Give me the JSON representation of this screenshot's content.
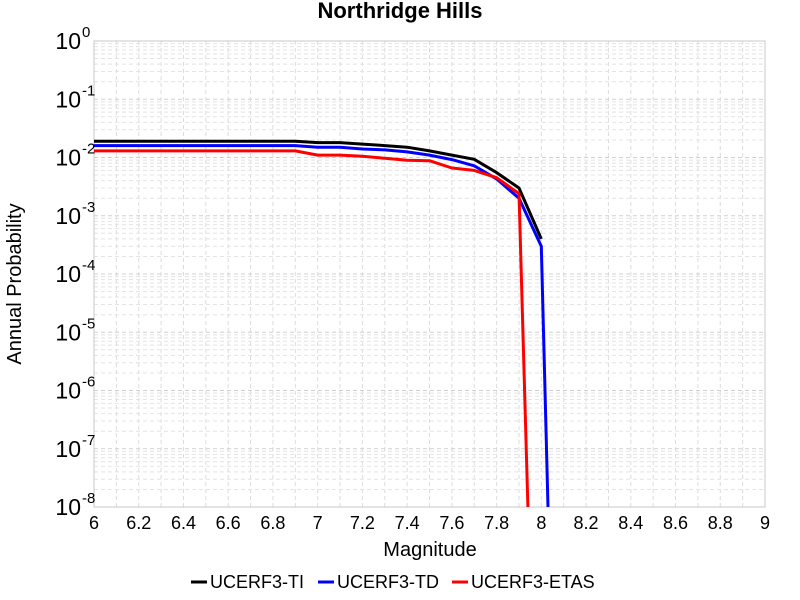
{
  "chart_data": {
    "type": "line",
    "title": "Northridge Hills",
    "xlabel": "Magnitude",
    "ylabel": "Annual Probability",
    "xlim": [
      6,
      9
    ],
    "ylim": [
      1e-08,
      1
    ],
    "yscale": "log",
    "grid": true,
    "legend_position": "bottom",
    "x_ticks": [
      "6",
      "6.2",
      "6.4",
      "6.6",
      "6.8",
      "7",
      "7.2",
      "7.4",
      "7.6",
      "7.8",
      "8",
      "8.2",
      "8.4",
      "8.6",
      "8.8",
      "9"
    ],
    "y_ticks": [
      {
        "base": "10",
        "exp": "-8"
      },
      {
        "base": "10",
        "exp": "-7"
      },
      {
        "base": "10",
        "exp": "-6"
      },
      {
        "base": "10",
        "exp": "-5"
      },
      {
        "base": "10",
        "exp": "-4"
      },
      {
        "base": "10",
        "exp": "-3"
      },
      {
        "base": "10",
        "exp": "-2"
      },
      {
        "base": "10",
        "exp": "-1"
      },
      {
        "base": "10",
        "exp": "0"
      }
    ],
    "series": [
      {
        "name": "UCERF3-TI",
        "color": "#000000",
        "x": [
          6.0,
          6.1,
          6.2,
          6.3,
          6.4,
          6.5,
          6.6,
          6.7,
          6.8,
          6.9,
          7.0,
          7.1,
          7.2,
          7.3,
          7.4,
          7.5,
          7.6,
          7.7,
          7.8,
          7.9,
          8.0
        ],
        "y": [
          0.019,
          0.019,
          0.019,
          0.019,
          0.019,
          0.019,
          0.019,
          0.019,
          0.019,
          0.019,
          0.018,
          0.018,
          0.017,
          0.016,
          0.015,
          0.013,
          0.011,
          0.0093,
          0.0055,
          0.003,
          0.0004
        ]
      },
      {
        "name": "UCERF3-TD",
        "color": "#0000ff",
        "x": [
          6.0,
          6.1,
          6.2,
          6.3,
          6.4,
          6.5,
          6.6,
          6.7,
          6.8,
          6.9,
          7.0,
          7.1,
          7.2,
          7.3,
          7.4,
          7.5,
          7.6,
          7.7,
          7.8,
          7.9,
          8.0,
          8.03
        ],
        "y": [
          0.016,
          0.016,
          0.016,
          0.016,
          0.016,
          0.016,
          0.016,
          0.016,
          0.016,
          0.016,
          0.015,
          0.015,
          0.014,
          0.0135,
          0.0125,
          0.011,
          0.0092,
          0.0072,
          0.0043,
          0.002,
          0.0003,
          1e-08
        ]
      },
      {
        "name": "UCERF3-ETAS",
        "color": "#ff0000",
        "x": [
          6.0,
          6.1,
          6.2,
          6.3,
          6.4,
          6.5,
          6.6,
          6.7,
          6.8,
          6.9,
          7.0,
          7.1,
          7.2,
          7.3,
          7.4,
          7.5,
          7.6,
          7.7,
          7.8,
          7.9,
          7.94
        ],
        "y": [
          0.013,
          0.013,
          0.013,
          0.013,
          0.013,
          0.013,
          0.013,
          0.013,
          0.013,
          0.013,
          0.011,
          0.011,
          0.0105,
          0.0097,
          0.009,
          0.0088,
          0.0066,
          0.006,
          0.0045,
          0.0024,
          1e-08
        ]
      }
    ]
  }
}
